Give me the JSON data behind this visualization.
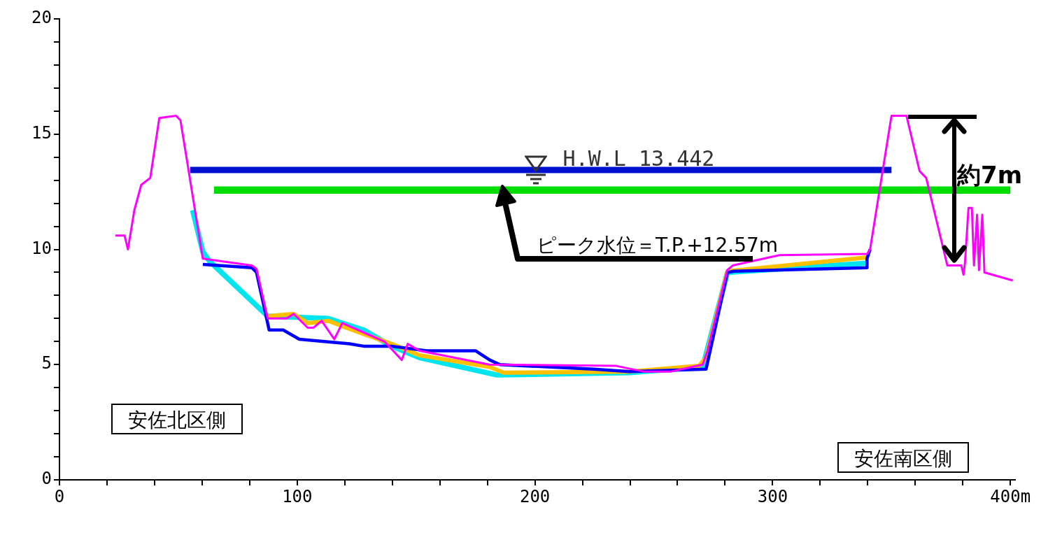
{
  "chart_data": {
    "type": "line",
    "xlim": [
      0,
      402
    ],
    "ylim": [
      0,
      20
    ],
    "xticks": [
      0,
      {
        "value": 20,
        "label": null
      },
      {
        "value": 40,
        "label": null
      },
      {
        "value": 60,
        "label": null
      },
      {
        "value": 80,
        "label": null
      },
      100,
      {
        "value": 120,
        "label": null
      },
      {
        "value": 140,
        "label": null
      },
      {
        "value": 160,
        "label": null
      },
      {
        "value": 180,
        "label": null
      },
      200,
      {
        "value": 220,
        "label": null
      },
      {
        "value": 240,
        "label": null
      },
      {
        "value": 260,
        "label": null
      },
      {
        "value": 280,
        "label": null
      },
      300,
      {
        "value": 320,
        "label": null
      },
      {
        "value": 340,
        "label": null
      },
      {
        "value": 360,
        "label": null
      },
      {
        "value": 380,
        "label": null
      },
      {
        "value": 400,
        "label": "400m"
      }
    ],
    "yticks": [
      0,
      {
        "value": 1,
        "label": null
      },
      {
        "value": 2,
        "label": null
      },
      {
        "value": 3,
        "label": null
      },
      {
        "value": 4,
        "label": null
      },
      5,
      {
        "value": 6,
        "label": null
      },
      {
        "value": 7,
        "label": null
      },
      {
        "value": 8,
        "label": null
      },
      {
        "value": 9,
        "label": null
      },
      10,
      {
        "value": 11,
        "label": null
      },
      {
        "value": 12,
        "label": null
      },
      {
        "value": 13,
        "label": null
      },
      {
        "value": 14,
        "label": null
      },
      15,
      {
        "value": 16,
        "label": null
      },
      {
        "value": 17,
        "label": null
      },
      {
        "value": 18,
        "label": null
      },
      {
        "value": 19,
        "label": null
      },
      20
    ],
    "grid": false,
    "legend": false,
    "marker": "none",
    "line_style": "solid",
    "series": [
      {
        "color": "#ff00ff",
        "x": [
          23.5,
          27.4,
          28.8,
          31.5,
          34.4,
          38.2,
          42,
          49,
          50.9,
          60.3,
          80.9,
          82.9,
          87.6,
          95.6,
          98.5,
          104.4,
          106.8,
          110.3,
          115.6,
          119,
          123.5,
          136.7,
          144,
          146.5,
          151.5,
          180.9,
          233.8,
          245.6,
          257.3,
          270.6,
          272.6,
          280.9,
          283.2,
          302.9,
          339.7,
          341,
          350,
          356.3,
          361.8,
          364.6,
          373.5,
          379.4,
          380.3,
          380.9,
          382.4,
          383.8,
          384.7,
          386,
          386.8,
          388.2,
          389.1,
          401
        ],
        "values": [
          10.6,
          10.6,
          10,
          11.7,
          12.8,
          13.1,
          15.7,
          15.8,
          15.6,
          9.6,
          9.3,
          9.15,
          7,
          7,
          7.2,
          6.6,
          6.6,
          6.9,
          6.1,
          6.8,
          6.6,
          6,
          5.2,
          5.9,
          5.6,
          5,
          4.95,
          4.7,
          4.7,
          5,
          5.6,
          9.1,
          9.3,
          9.75,
          9.8,
          10,
          15.8,
          15.8,
          13.4,
          13.1,
          9.3,
          9.3,
          8.9,
          9.4,
          11.8,
          11.8,
          9.3,
          11.5,
          9.1,
          11.5,
          9,
          8.65
        ]
      },
      {
        "color": "#0000ff",
        "x": [
          60.3,
          81,
          82.9,
          88.2,
          94.1,
          100.9,
          122,
          128,
          139.7,
          154.4,
          175,
          181,
          185.3,
          224.7,
          239.7,
          272,
          281,
          283.8,
          339.7,
          339.7,
          341
        ],
        "values": [
          9.35,
          9.2,
          9,
          6.5,
          6.5,
          6.1,
          5.9,
          5.8,
          5.8,
          5.6,
          5.6,
          5.2,
          5,
          4.8,
          4.7,
          4.8,
          9,
          9.05,
          9.2,
          9.6,
          10
        ]
      },
      {
        "color": "#ffc000",
        "x": [
          87.6,
          98.5,
          104.4,
          113.2,
          120.6,
          139.7,
          151.5,
          180.9,
          186.8,
          239.7,
          269,
          272,
          281,
          339.7
        ],
        "values": [
          7.1,
          7.2,
          6.8,
          6.9,
          6.6,
          5.9,
          5.4,
          4.9,
          4.65,
          4.7,
          4.95,
          5.3,
          9.05,
          9.65
        ]
      },
      {
        "color": "#00e5ee",
        "x": [
          56,
          60.3,
          63,
          87.6,
          113,
          128,
          139.7,
          151.5,
          184,
          239.7,
          270.6,
          281,
          339.7
        ],
        "values": [
          11.7,
          9.9,
          9.5,
          7.1,
          7,
          6.5,
          5.8,
          5.3,
          4.55,
          4.65,
          4.9,
          9,
          9.4
        ]
      },
      {
        "color": "#0010d0",
        "x": [
          55,
          350
        ],
        "values": [
          13.442,
          13.442
        ]
      },
      {
        "color": "#00dd00",
        "x": [
          65,
          400
        ],
        "values": [
          12.57,
          12.57
        ]
      }
    ],
    "annotations": [
      {
        "text": "H.W.L 13.442",
        "x": 200,
        "y": 13.442
      },
      {
        "text": "ピーク水位＝T.P.+12.57m",
        "x": 186,
        "y": 12.57
      },
      "約7m",
      "安佐北区側",
      "安佐南区側"
    ]
  }
}
